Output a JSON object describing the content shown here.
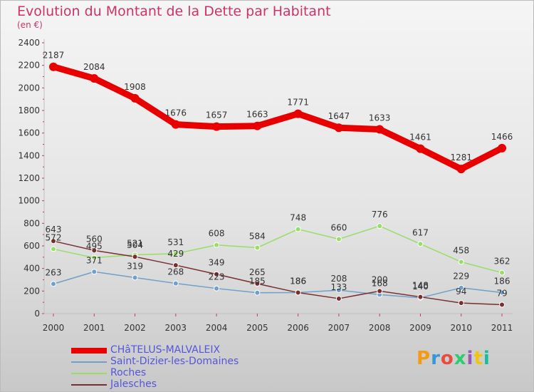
{
  "header": {
    "title": "Evolution du Montant de la Dette par Habitant",
    "subtitle": "(en €)"
  },
  "logo": {
    "text": "Proxiti",
    "colors": [
      "#f39c12",
      "#3498db",
      "#e74c3c",
      "#2ecc71",
      "#9b59b6",
      "#f1c40f",
      "#1abc9c"
    ]
  },
  "chart_data": {
    "type": "line",
    "x": [
      "2000",
      "2001",
      "2002",
      "2003",
      "2004",
      "2005",
      "2006",
      "2007",
      "2008",
      "2009",
      "2010",
      "2011"
    ],
    "ylim": [
      0,
      2400
    ],
    "yticks": [
      0,
      200,
      400,
      600,
      800,
      1000,
      1200,
      1400,
      1600,
      1800,
      2000,
      2200,
      2400
    ],
    "grid": false,
    "legend_position": "bottom-left",
    "series": [
      {
        "name": "CHâTELUS-MALVALEIX",
        "color": "#e80000",
        "legend_color": "#5555dd",
        "values": [
          2187,
          2084,
          1908,
          1676,
          1657,
          1663,
          1771,
          1647,
          1633,
          1461,
          1281,
          1466
        ],
        "labels": [
          "2187",
          "2084",
          "1908",
          "1676",
          "1657",
          "1663",
          "1771",
          "1647",
          "1633",
          "1461",
          "1281",
          "1466"
        ]
      },
      {
        "name": "Saint-Dizier-les-Domaines",
        "color": "#6f9fca",
        "legend_color": "#5555dd",
        "values": [
          263,
          371,
          319,
          268,
          223,
          185,
          186,
          208,
          168,
          140,
          229,
          186
        ],
        "labels": [
          "263",
          "371",
          "319",
          "268",
          "223",
          "185",
          "186",
          "208",
          "168",
          "140",
          "229",
          "186"
        ]
      },
      {
        "name": "Roches",
        "color": "#99dd66",
        "legend_color": "#5555dd",
        "values": [
          572,
          495,
          521,
          531,
          608,
          584,
          748,
          660,
          776,
          617,
          458,
          362
        ],
        "labels": [
          "572",
          "495",
          "521",
          "531",
          "608",
          "584",
          "748",
          "660",
          "776",
          "617",
          "458",
          "362"
        ]
      },
      {
        "name": "Jalesches",
        "color": "#7a2e2e",
        "legend_color": "#5555dd",
        "values": [
          643,
          560,
          504,
          429,
          349,
          265,
          186,
          133,
          200,
          148,
          94,
          79
        ],
        "labels": [
          "643",
          "560",
          "504",
          "429",
          "349",
          "265",
          "186",
          "133",
          "200",
          "148",
          "94",
          "79"
        ]
      }
    ]
  }
}
